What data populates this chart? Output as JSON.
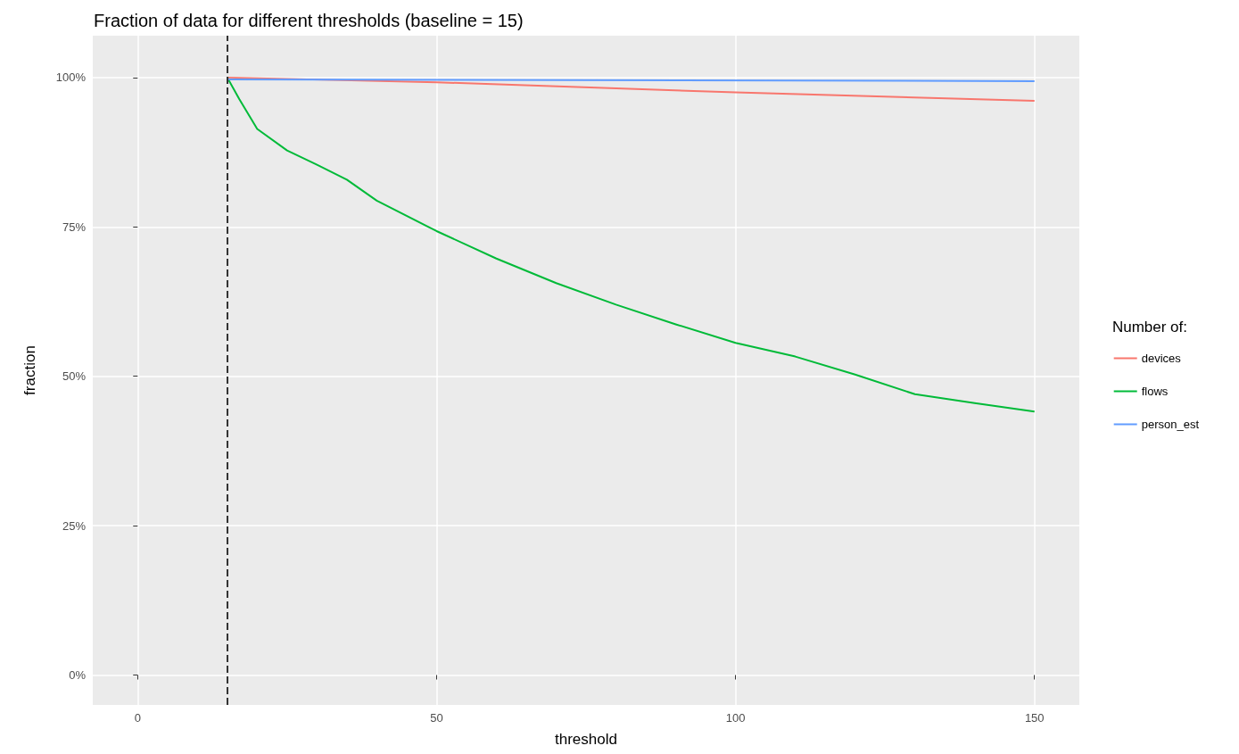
{
  "chart_data": {
    "type": "line",
    "title": "Fraction of data for different thresholds (baseline = 15)",
    "xlabel": "threshold",
    "ylabel": "fraction",
    "legend_title": "Number of:",
    "legend": "right",
    "grid": true,
    "marker": "none",
    "line_style": "solid",
    "xlim": [
      -7.5,
      157.5
    ],
    "xticks": [
      0,
      50,
      100,
      150
    ],
    "ylim": [
      -5,
      107
    ],
    "yticks": [
      {
        "value": 0,
        "label": "0%"
      },
      {
        "value": 25,
        "label": "25%"
      },
      {
        "value": 50,
        "label": "50%"
      },
      {
        "value": 75,
        "label": "75%"
      },
      {
        "value": 100,
        "label": "100%"
      }
    ],
    "ref_lines": [
      {
        "axis": "x",
        "value": 15,
        "label": null,
        "color": "#333333",
        "line_style": "dashed"
      }
    ],
    "series": [
      {
        "name": "devices",
        "color": "#f8766d",
        "x": [
          15,
          50,
          100,
          150
        ],
        "values": [
          100,
          99.2,
          97.5,
          96.1
        ]
      },
      {
        "name": "flows",
        "color": "#00ba38",
        "x": [
          15,
          17,
          20,
          25,
          30,
          35,
          40,
          50,
          60,
          70,
          80,
          90,
          100,
          110,
          120,
          130,
          140,
          150
        ],
        "values": [
          100,
          96.4,
          91.4,
          87.8,
          85.4,
          82.9,
          79.4,
          74.3,
          69.7,
          65.6,
          62,
          58.7,
          55.6,
          53.3,
          50.3,
          47,
          45.5,
          44.1
        ]
      },
      {
        "name": "person_est",
        "color": "#619cff",
        "x": [
          15,
          150
        ],
        "values": [
          99.7,
          99.4
        ]
      }
    ]
  }
}
